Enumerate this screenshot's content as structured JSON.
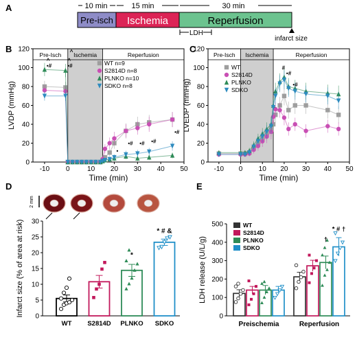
{
  "timeline": {
    "panel": "A",
    "phases": [
      {
        "label": "Pre-isch",
        "duration": "10 min",
        "color": "#8E8CC7"
      },
      {
        "label": "Ischemia",
        "duration": "15 min",
        "color": "#DC2456"
      },
      {
        "label": "Reperfusion",
        "duration": "30 min",
        "color": "#6CC38F"
      }
    ],
    "ldh_label": "LDH",
    "infarct_label": "infarct size"
  },
  "chart_data": [
    {
      "panel": "B",
      "type": "line",
      "ylabel": "LVDP (mmHg)",
      "xlabel": "Time (min)",
      "xlim": [
        -15,
        50
      ],
      "ylim": [
        0,
        120
      ],
      "xticks": [
        -10,
        0,
        10,
        20,
        30,
        40,
        50
      ],
      "yticks": [
        0,
        20,
        40,
        60,
        80,
        100,
        120
      ],
      "phase_labels": [
        "Pre-Isch",
        "Ischemia",
        "Reperfusion"
      ],
      "ischemia_window": [
        0,
        15
      ],
      "series": [
        {
          "name": "WT n=9",
          "color": "#9e9e9e",
          "marker": "square",
          "x": [
            -10,
            -1,
            0,
            2,
            4,
            6,
            8,
            10,
            12,
            14,
            15,
            16,
            18,
            20,
            25,
            30,
            35,
            45
          ],
          "y": [
            80,
            79,
            0,
            0,
            0,
            0,
            0,
            0,
            0,
            0,
            2,
            5,
            10,
            20,
            33,
            40,
            42,
            45
          ],
          "err": [
            6,
            6,
            0,
            0,
            0,
            0,
            0,
            0,
            0,
            0,
            2,
            3,
            4,
            6,
            8,
            8,
            8,
            8
          ]
        },
        {
          "name": "S2814D n=8",
          "color": "#c94fb4",
          "marker": "circle",
          "x": [
            -10,
            -1,
            0,
            2,
            4,
            6,
            8,
            10,
            12,
            14,
            15,
            16,
            18,
            20,
            25,
            30,
            35,
            45
          ],
          "y": [
            76,
            75,
            0,
            0,
            0,
            0,
            0,
            0,
            0,
            0,
            3,
            14,
            20,
            25,
            33,
            36,
            40,
            45
          ],
          "err": [
            5,
            5,
            0,
            0,
            0,
            0,
            0,
            0,
            0,
            0,
            3,
            5,
            6,
            7,
            7,
            7,
            8,
            8
          ]
        },
        {
          "name": "PLNKO n=10",
          "color": "#2e8b57",
          "marker": "triangle-up",
          "x": [
            -10,
            -1,
            0,
            2,
            4,
            6,
            8,
            10,
            12,
            14,
            15,
            16,
            18,
            20,
            25,
            30,
            35,
            45
          ],
          "y": [
            98,
            97,
            0,
            0,
            0,
            0,
            0,
            0,
            0,
            0,
            1,
            2,
            3,
            4,
            6,
            4,
            5,
            7
          ],
          "err": [
            7,
            7,
            0,
            0,
            0,
            0,
            0,
            0,
            0,
            0,
            1,
            2,
            2,
            3,
            3,
            3,
            3,
            3
          ]
        },
        {
          "name": "SDKO n=8",
          "color": "#2d8bbf",
          "marker": "triangle-down",
          "x": [
            -10,
            -1,
            0,
            2,
            4,
            6,
            8,
            10,
            12,
            14,
            15,
            16,
            18,
            20,
            25,
            30,
            35,
            45
          ],
          "y": [
            70,
            70,
            0,
            0,
            0,
            0,
            0,
            0,
            0,
            0,
            1,
            2,
            3,
            5,
            8,
            9,
            11,
            17
          ],
          "err": [
            5,
            5,
            0,
            0,
            0,
            0,
            0,
            0,
            0,
            0,
            1,
            2,
            2,
            3,
            4,
            4,
            4,
            5
          ]
        }
      ],
      "annotations": [
        {
          "text": "^",
          "x": -10,
          "y": 106
        },
        {
          "text": "•#",
          "x": -10,
          "y": 100
        },
        {
          "text": "^",
          "x": -1,
          "y": 106
        },
        {
          "text": "•#",
          "x": -1,
          "y": 100
        },
        {
          "text": "^",
          "x": 0,
          "y": 115
        },
        {
          "text": "•#",
          "x": 25,
          "y": 18
        },
        {
          "text": "•#",
          "x": 30,
          "y": 18
        },
        {
          "text": "•#",
          "x": 35,
          "y": 20
        },
        {
          "text": "•#",
          "x": 45,
          "y": 30
        },
        {
          "text": "•",
          "x": 20,
          "y": 10
        }
      ]
    },
    {
      "panel": "C",
      "type": "line",
      "ylabel": "LVEDP (mmHg)",
      "xlabel": "Time (min)",
      "xlim": [
        -15,
        50
      ],
      "ylim": [
        0,
        120
      ],
      "xticks": [
        -10,
        0,
        10,
        20,
        30,
        40,
        50
      ],
      "yticks": [
        0,
        20,
        40,
        60,
        80,
        100,
        120
      ],
      "phase_labels": [
        "Pre-Isch",
        "Ischemia",
        "Reperfusion"
      ],
      "ischemia_window": [
        0,
        15
      ],
      "series": [
        {
          "name": "WT",
          "color": "#9e9e9e",
          "marker": "square",
          "x": [
            -10,
            0,
            2,
            4,
            6,
            8,
            10,
            12,
            14,
            15,
            16,
            18,
            20,
            22,
            25,
            30,
            40,
            45
          ],
          "y": [
            9,
            9,
            9,
            10,
            15,
            20,
            25,
            30,
            35,
            40,
            50,
            60,
            70,
            55,
            60,
            60,
            55,
            50
          ],
          "err": [
            2,
            2,
            2,
            3,
            4,
            5,
            6,
            7,
            8,
            8,
            8,
            9,
            10,
            9,
            9,
            9,
            9,
            9
          ]
        },
        {
          "name": "S2814D",
          "color": "#c94fb4",
          "marker": "circle",
          "x": [
            -10,
            0,
            2,
            4,
            6,
            8,
            10,
            12,
            14,
            15,
            16,
            18,
            20,
            22,
            25,
            30,
            40,
            45
          ],
          "y": [
            8,
            8,
            8,
            9,
            13,
            17,
            22,
            27,
            32,
            48,
            56,
            55,
            47,
            35,
            40,
            33,
            38,
            35
          ],
          "err": [
            2,
            2,
            2,
            3,
            4,
            5,
            6,
            7,
            8,
            8,
            8,
            8,
            8,
            7,
            7,
            7,
            7,
            7
          ]
        },
        {
          "name": "PLNKO",
          "color": "#2e8b57",
          "marker": "triangle-up",
          "x": [
            -10,
            0,
            2,
            4,
            6,
            8,
            10,
            12,
            14,
            15,
            16,
            18,
            20,
            22,
            25,
            30,
            40,
            45
          ],
          "y": [
            10,
            10,
            10,
            12,
            18,
            25,
            30,
            35,
            40,
            60,
            75,
            85,
            90,
            80,
            78,
            75,
            73,
            72
          ],
          "err": [
            2,
            2,
            2,
            3,
            4,
            5,
            6,
            7,
            8,
            8,
            9,
            9,
            10,
            9,
            9,
            9,
            9,
            9
          ]
        },
        {
          "name": "SDKO",
          "color": "#2d8bbf",
          "marker": "triangle-down",
          "x": [
            -10,
            0,
            2,
            4,
            6,
            8,
            10,
            12,
            14,
            15,
            16,
            18,
            20,
            22,
            25,
            30,
            40,
            45
          ],
          "y": [
            8,
            8,
            8,
            10,
            16,
            22,
            27,
            32,
            38,
            58,
            70,
            83,
            87,
            78,
            75,
            72,
            70,
            65
          ],
          "err": [
            2,
            2,
            2,
            3,
            4,
            5,
            6,
            7,
            8,
            8,
            9,
            9,
            10,
            9,
            9,
            9,
            9,
            9
          ]
        }
      ],
      "annotations": [
        {
          "text": "#",
          "x": 18,
          "y": 98
        },
        {
          "text": "•#",
          "x": 20,
          "y": 92
        },
        {
          "text": "•#",
          "x": 23,
          "y": 80
        }
      ]
    },
    {
      "panel": "D",
      "type": "bar",
      "ylabel": "Infarct size (% of area at risk)",
      "categories": [
        "WT",
        "S2814D",
        "PLNKO",
        "SDKO"
      ],
      "values": [
        5.5,
        10.8,
        14.4,
        23.3
      ],
      "err": [
        1.1,
        2.0,
        1.9,
        1.0
      ],
      "colors": [
        "#000000",
        "#c2185b",
        "#2e8b57",
        "#1f8fc8"
      ],
      "ylim": [
        0,
        30
      ],
      "yticks": [
        0,
        5,
        10,
        15,
        20,
        25,
        30
      ],
      "points": [
        [
          2.2,
          3.5,
          4.0,
          4.3,
          5.0,
          5.5,
          7.3,
          8.9,
          11.8
        ],
        [
          5.8,
          8.5,
          10.0,
          14.8,
          16.9
        ],
        [
          8.5,
          10.1,
          11.9,
          14.4,
          16.4,
          17.4,
          20.8
        ],
        [
          21.6,
          21.9,
          23.4,
          24.6,
          25.0
        ]
      ],
      "annotations": [
        {
          "text": "*",
          "x": "PLNKO",
          "y": 18.6
        },
        {
          "text": "* # &",
          "x": "SDKO",
          "y": 26.2
        }
      ],
      "scale_label": "2 mm"
    },
    {
      "panel": "E",
      "type": "bar",
      "ylabel": "LDH release (U/L/g)",
      "categories": [
        "Preischemia",
        "Reperfusion"
      ],
      "ylim": [
        0,
        500
      ],
      "yticks": [
        0,
        100,
        200,
        300,
        400,
        500
      ],
      "series": [
        {
          "name": "WT",
          "color": "#333333",
          "values": [
            122,
            212
          ],
          "err": [
            20,
            25
          ]
        },
        {
          "name": "S2814D",
          "color": "#c2185b",
          "values": [
            140,
            272
          ],
          "err": [
            20,
            30
          ]
        },
        {
          "name": "PLNKO",
          "color": "#2e8b57",
          "values": [
            140,
            290
          ],
          "err": [
            25,
            35
          ]
        },
        {
          "name": "SDKO",
          "color": "#1f8fc8",
          "values": [
            140,
            375
          ],
          "err": [
            20,
            50
          ]
        }
      ],
      "points": [
        [
          [
            75,
            95,
            120,
            140,
            160,
            175
          ],
          [
            150,
            185,
            210,
            240,
            275
          ]
        ],
        [
          [
            60,
            90,
            120,
            160,
            190
          ],
          [
            180,
            230,
            260,
            300,
            330
          ]
        ],
        [
          [
            70,
            100,
            130,
            150,
            175,
            185
          ],
          [
            165,
            220,
            250,
            290,
            330,
            370,
            410
          ]
        ],
        [
          [
            100,
            120,
            140,
            160
          ],
          [
            300,
            340,
            370,
            400,
            450
          ]
        ]
      ],
      "annotations": [
        {
          "text": "†",
          "x": "PLNKO",
          "y": 405
        },
        {
          "text": "* # †",
          "x": "SDKO",
          "y": 460
        }
      ]
    }
  ],
  "panel_letters": [
    "A",
    "B",
    "C",
    "D",
    "E"
  ]
}
